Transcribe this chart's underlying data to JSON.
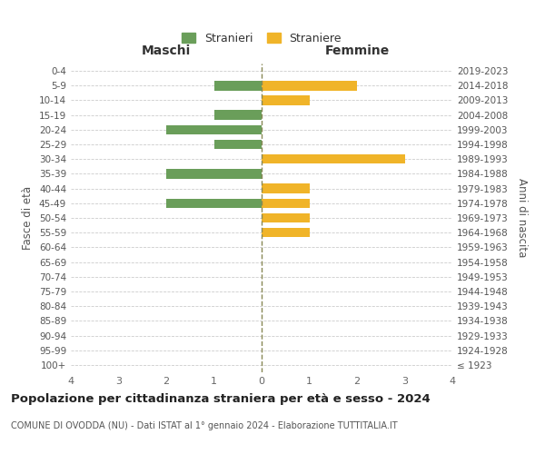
{
  "age_groups": [
    "100+",
    "95-99",
    "90-94",
    "85-89",
    "80-84",
    "75-79",
    "70-74",
    "65-69",
    "60-64",
    "55-59",
    "50-54",
    "45-49",
    "40-44",
    "35-39",
    "30-34",
    "25-29",
    "20-24",
    "15-19",
    "10-14",
    "5-9",
    "0-4"
  ],
  "birth_years": [
    "≤ 1923",
    "1924-1928",
    "1929-1933",
    "1934-1938",
    "1939-1943",
    "1944-1948",
    "1949-1953",
    "1954-1958",
    "1959-1963",
    "1964-1968",
    "1969-1973",
    "1974-1978",
    "1979-1983",
    "1984-1988",
    "1989-1993",
    "1994-1998",
    "1999-2003",
    "2004-2008",
    "2009-2013",
    "2014-2018",
    "2019-2023"
  ],
  "males": [
    0,
    0,
    0,
    0,
    0,
    0,
    0,
    0,
    0,
    0,
    0,
    2,
    0,
    2,
    0,
    1,
    2,
    1,
    0,
    1,
    0
  ],
  "females": [
    0,
    0,
    0,
    0,
    0,
    0,
    0,
    0,
    0,
    1,
    1,
    1,
    1,
    0,
    3,
    0,
    0,
    0,
    1,
    2,
    0
  ],
  "color_male": "#6a9e5a",
  "color_female": "#f0b429",
  "color_grid": "#cccccc",
  "color_center_line": "#888855",
  "xlim": 4,
  "xticks": [
    -4,
    -3,
    -2,
    -1,
    0,
    1,
    2,
    3,
    4
  ],
  "xticklabels": [
    "4",
    "3",
    "2",
    "1",
    "0",
    "1",
    "2",
    "3",
    "4"
  ],
  "title": "Popolazione per cittadinanza straniera per età e sesso - 2024",
  "subtitle": "COMUNE DI OVODDA (NU) - Dati ISTAT al 1° gennaio 2024 - Elaborazione TUTTITALIA.IT",
  "label_maschi": "Maschi",
  "label_femmine": "Femmine",
  "legend_stranieri": "Stranieri",
  "legend_straniere": "Straniere",
  "ylabel_left": "Fasce di età",
  "ylabel_right": "Anni di nascita",
  "background_color": "#ffffff"
}
